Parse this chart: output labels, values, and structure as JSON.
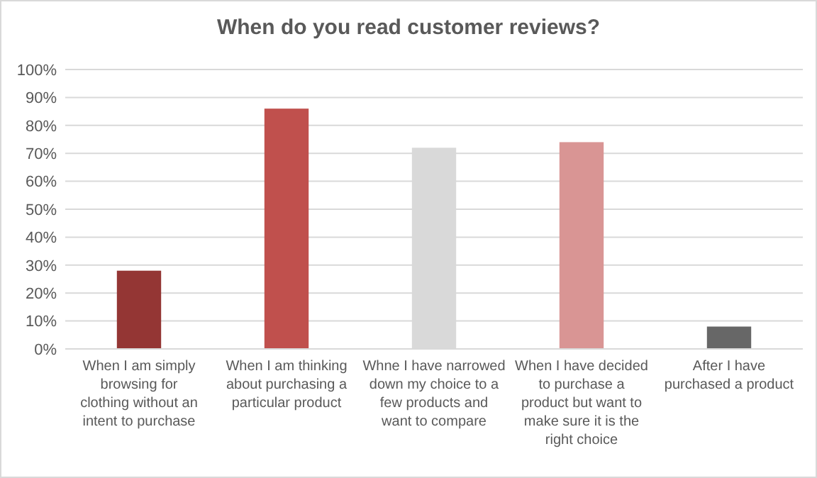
{
  "chart_data": {
    "type": "bar",
    "title": "When do you read customer reviews?",
    "categories": [
      "When I am simply browsing for clothing without an intent to purchase",
      "When I am thinking about purchasing a particular product",
      "Whne I have narrowed down my choice to a few products and want to compare",
      "When I have decided to purchase a product but want to make sure it is the right choice",
      "After I have purchased a product"
    ],
    "values": [
      0.28,
      0.86,
      0.72,
      0.74,
      0.08
    ],
    "colors": [
      "#943634",
      "#c0504d",
      "#d9d9d9",
      "#d99594",
      "#676767"
    ],
    "ylim": [
      0,
      1
    ],
    "yticks": [
      {
        "value": 0,
        "label": "0%"
      },
      {
        "value": 0.1,
        "label": "10%"
      },
      {
        "value": 0.2,
        "label": "20%"
      },
      {
        "value": 0.3,
        "label": "30%"
      },
      {
        "value": 0.4,
        "label": "40%"
      },
      {
        "value": 0.5,
        "label": "50%"
      },
      {
        "value": 0.6,
        "label": "60%"
      },
      {
        "value": 0.7,
        "label": "70%"
      },
      {
        "value": 0.8,
        "label": "80%"
      },
      {
        "value": 0.9,
        "label": "90%"
      },
      {
        "value": 1,
        "label": "100%"
      }
    ],
    "grid": "y"
  }
}
